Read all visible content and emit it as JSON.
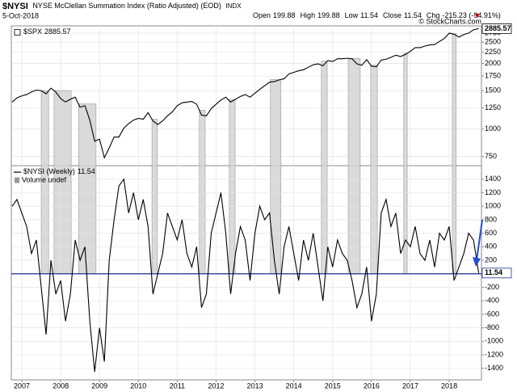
{
  "header": {
    "symbol": "$NYSI",
    "name": "NYSE McClellan Summation Index (Ratio Adjusted) (EOD)",
    "exchange": "INDX",
    "date": "5-Oct-2018",
    "quote": [
      {
        "label": "Open",
        "value": "199.88"
      },
      {
        "label": "High",
        "value": "199.88"
      },
      {
        "label": "Low",
        "value": "11.54"
      },
      {
        "label": "Close",
        "value": "11.54"
      },
      {
        "label": "Chg",
        "value": "-215.23 (-94.91%)"
      }
    ],
    "credit": "© StockCharts.com"
  },
  "chart_data": [
    {
      "type": "line",
      "log_scale": true,
      "grid": true,
      "x": [
        2006.75,
        2006.875,
        2007,
        2007.125,
        2007.25,
        2007.375,
        2007.5,
        2007.625,
        2007.75,
        2007.875,
        2008,
        2008.125,
        2008.25,
        2008.375,
        2008.5,
        2008.625,
        2008.75,
        2008.875,
        2009,
        2009.125,
        2009.25,
        2009.375,
        2009.5,
        2009.625,
        2009.75,
        2009.875,
        2010,
        2010.125,
        2010.25,
        2010.375,
        2010.5,
        2010.625,
        2010.75,
        2010.875,
        2011,
        2011.125,
        2011.25,
        2011.375,
        2011.5,
        2011.625,
        2011.75,
        2011.875,
        2012,
        2012.125,
        2012.25,
        2012.375,
        2012.5,
        2012.625,
        2012.75,
        2012.875,
        2013,
        2013.125,
        2013.25,
        2013.375,
        2013.5,
        2013.625,
        2013.75,
        2013.875,
        2014,
        2014.125,
        2014.25,
        2014.375,
        2014.5,
        2014.625,
        2014.75,
        2014.875,
        2015,
        2015.125,
        2015.25,
        2015.375,
        2015.5,
        2015.625,
        2015.75,
        2015.875,
        2016,
        2016.125,
        2016.25,
        2016.375,
        2016.5,
        2016.625,
        2016.75,
        2016.875,
        2017,
        2017.125,
        2017.25,
        2017.375,
        2017.5,
        2017.625,
        2017.75,
        2017.875,
        2018,
        2018.125,
        2018.25,
        2018.375,
        2018.5,
        2018.625,
        2018.76
      ],
      "series": [
        {
          "name": "$SPX",
          "color": "#000000",
          "values": [
            1330,
            1390,
            1420,
            1440,
            1480,
            1510,
            1500,
            1450,
            1540,
            1480,
            1380,
            1330,
            1370,
            1400,
            1260,
            1280,
            1100,
            880,
            900,
            740,
            820,
            920,
            920,
            1010,
            1060,
            1100,
            1120,
            1110,
            1190,
            1090,
            1050,
            1090,
            1150,
            1200,
            1280,
            1320,
            1330,
            1340,
            1300,
            1160,
            1150,
            1240,
            1300,
            1360,
            1400,
            1330,
            1370,
            1410,
            1440,
            1400,
            1460,
            1520,
            1580,
            1640,
            1650,
            1680,
            1700,
            1790,
            1820,
            1850,
            1870,
            1920,
            1970,
            1990,
            1950,
            2060,
            2040,
            2100,
            2100,
            2110,
            2100,
            1990,
            1960,
            2080,
            1940,
            1930,
            2070,
            2090,
            2130,
            2180,
            2150,
            2200,
            2270,
            2360,
            2360,
            2400,
            2430,
            2440,
            2520,
            2600,
            2750,
            2720,
            2640,
            2710,
            2750,
            2850,
            2885.57
          ]
        }
      ],
      "xlim": [
        2006.73,
        2018.83
      ],
      "ylim": [
        680,
        2970
      ],
      "yticks": [
        750,
        1000,
        1250,
        1500,
        1750,
        2000,
        2250,
        2500,
        2750
      ],
      "shaded_periods": [
        [
          2007.5,
          2007.69
        ],
        [
          2007.83,
          2008.27
        ],
        [
          2008.46,
          2008.91
        ],
        [
          2010.35,
          2010.49
        ],
        [
          2011.57,
          2011.72
        ],
        [
          2012.34,
          2012.49
        ],
        [
          2013.4,
          2013.67
        ],
        [
          2014.71,
          2014.86
        ],
        [
          2015.4,
          2015.71
        ],
        [
          2015.98,
          2016.15
        ],
        [
          2016.83,
          2016.92
        ],
        [
          2018.08,
          2018.18
        ]
      ]
    },
    {
      "type": "line",
      "grid": true,
      "legend_note": "Volume undef",
      "x": [
        2006.75,
        2006.875,
        2007,
        2007.125,
        2007.25,
        2007.375,
        2007.5,
        2007.625,
        2007.75,
        2007.875,
        2008,
        2008.125,
        2008.25,
        2008.375,
        2008.5,
        2008.625,
        2008.75,
        2008.875,
        2009,
        2009.125,
        2009.25,
        2009.375,
        2009.5,
        2009.625,
        2009.75,
        2009.875,
        2010,
        2010.125,
        2010.25,
        2010.375,
        2010.5,
        2010.625,
        2010.75,
        2010.875,
        2011,
        2011.125,
        2011.25,
        2011.375,
        2011.5,
        2011.625,
        2011.75,
        2011.875,
        2012,
        2012.125,
        2012.25,
        2012.375,
        2012.5,
        2012.625,
        2012.75,
        2012.875,
        2013,
        2013.125,
        2013.25,
        2013.375,
        2013.5,
        2013.625,
        2013.75,
        2013.875,
        2014,
        2014.125,
        2014.25,
        2014.375,
        2014.5,
        2014.625,
        2014.75,
        2014.875,
        2015,
        2015.125,
        2015.25,
        2015.375,
        2015.5,
        2015.625,
        2015.75,
        2015.875,
        2016,
        2016.125,
        2016.25,
        2016.375,
        2016.5,
        2016.625,
        2016.75,
        2016.875,
        2017,
        2017.125,
        2017.25,
        2017.375,
        2017.5,
        2017.625,
        2017.75,
        2017.875,
        2018,
        2018.125,
        2018.25,
        2018.375,
        2018.5,
        2018.625,
        2018.76
      ],
      "series": [
        {
          "name": "$NYSI (Weekly)",
          "color": "#000000",
          "values": [
            1000,
            1100,
            900,
            700,
            300,
            500,
            -200,
            -900,
            200,
            -300,
            -100,
            -700,
            -300,
            500,
            200,
            400,
            -700,
            -1450,
            -800,
            -1300,
            200,
            800,
            1300,
            1400,
            900,
            1200,
            800,
            1100,
            700,
            -300,
            0,
            300,
            900,
            700,
            500,
            800,
            300,
            100,
            400,
            -500,
            -300,
            600,
            900,
            1200,
            600,
            -300,
            300,
            700,
            500,
            -100,
            600,
            1000,
            800,
            900,
            200,
            -300,
            400,
            700,
            300,
            -100,
            500,
            200,
            600,
            100,
            -400,
            400,
            100,
            500,
            300,
            200,
            -100,
            -500,
            -300,
            100,
            -700,
            -300,
            900,
            1100,
            700,
            900,
            300,
            500,
            400,
            700,
            300,
            200,
            500,
            100,
            600,
            500,
            700,
            -100,
            100,
            300,
            600,
            500,
            11.54
          ]
        }
      ],
      "xlim": [
        2006.73,
        2018.83
      ],
      "ylim": [
        -1570,
        1600
      ],
      "yticks": [
        -1400,
        -1200,
        -1000,
        -800,
        -600,
        -400,
        -200,
        0,
        200,
        400,
        600,
        800,
        1000,
        1200,
        1400
      ],
      "xticks": [
        2007,
        2008,
        2009,
        2010,
        2011,
        2012,
        2013,
        2014,
        2015,
        2016,
        2017,
        2018
      ],
      "hline": {
        "value": 0,
        "color": "#1f2f8f"
      }
    }
  ]
}
